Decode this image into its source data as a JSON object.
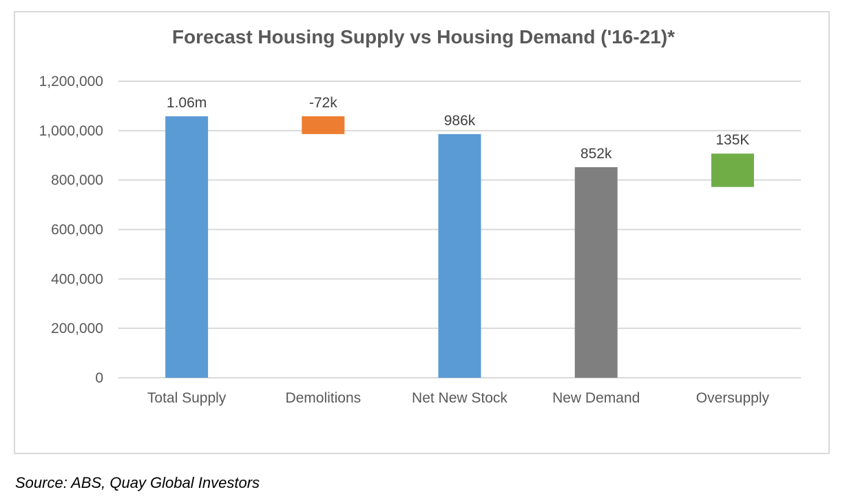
{
  "chart_data": {
    "type": "waterfall",
    "title": "Forecast Housing Supply vs Housing Demand ('16-21)*",
    "categories": [
      "Total Supply",
      "Demolitions",
      "Net New Stock",
      "New Demand",
      "Oversupply"
    ],
    "bars": [
      {
        "category": "Total Supply",
        "base": 0,
        "top": 1058000,
        "label": "1.06m",
        "color": "#5b9bd5"
      },
      {
        "category": "Demolitions",
        "base": 986000,
        "top": 1058000,
        "label": "-72k",
        "color": "#ed7d31"
      },
      {
        "category": "Net New Stock",
        "base": 0,
        "top": 986000,
        "label": "986k",
        "color": "#5b9bd5"
      },
      {
        "category": "New Demand",
        "base": 0,
        "top": 852000,
        "label": "852k",
        "color": "#7f7f7f"
      },
      {
        "category": "Oversupply",
        "base": 772000,
        "top": 907000,
        "label": "135K",
        "color": "#70ad47"
      }
    ],
    "yticks": [
      "0",
      "200,000",
      "400,000",
      "600,000",
      "800,000",
      "1,000,000",
      "1,200,000"
    ],
    "ylim": [
      0,
      1200000
    ],
    "grid": true
  },
  "source": "Source: ABS, Quay Global Investors"
}
